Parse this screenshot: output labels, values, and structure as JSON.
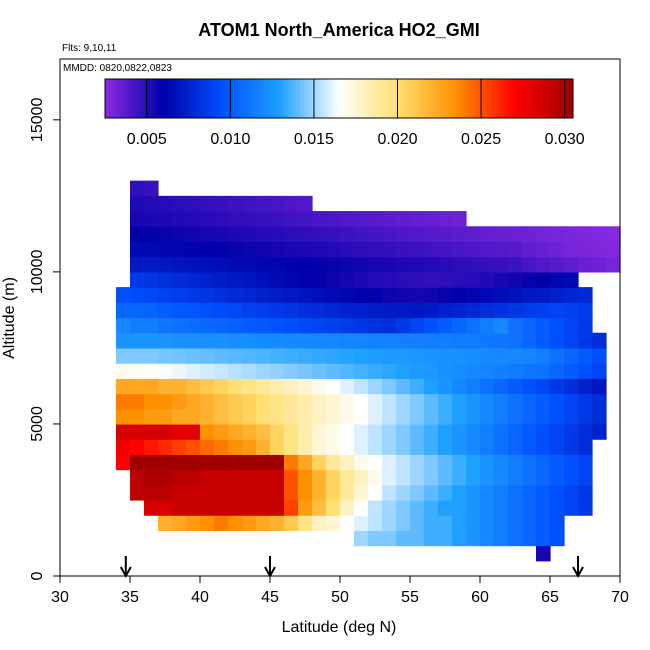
{
  "chart_data": {
    "type": "heatmap",
    "title": "ATOM1 North_America HO2_GMI",
    "annotations": [
      "Flts: 9,10,11",
      "MMDD: 0820,0822,0823"
    ],
    "xlabel": "Latitude (deg N)",
    "ylabel": "Altitude (m)",
    "xlim": [
      30,
      70
    ],
    "ylim": [
      0,
      17000
    ],
    "x_ticks": [
      "30",
      "35",
      "40",
      "45",
      "50",
      "55",
      "60",
      "65",
      "70"
    ],
    "y_ticks": [
      "0",
      "5000",
      "10000",
      "15000"
    ],
    "colorbar": {
      "range": [
        0.0025,
        0.0305
      ],
      "tick_labels": [
        "0.005",
        "0.010",
        "0.015",
        "0.020",
        "0.025",
        "0.030"
      ],
      "tick_values": [
        0.005,
        0.01,
        0.015,
        0.02,
        0.025,
        0.03
      ],
      "colors": [
        "#8a2be2",
        "#0000a8",
        "#0050ff",
        "#1ea0ff",
        "#ffffff",
        "#ffe070",
        "#ff9000",
        "#ff0000",
        "#a00000"
      ]
    },
    "flight_arrows_lat": [
      34.7,
      45,
      67
    ],
    "bin_size": {
      "lat": 1,
      "alt": 500
    },
    "rows": [
      {
        "alt": 750,
        "lat_range": [
          64,
          65
        ],
        "values": [
          0.0055
        ]
      },
      {
        "alt": 1250,
        "lat_range": [
          51,
          66
        ],
        "values": [
          0.015,
          0.0145,
          0.0145,
          0.014,
          0.014,
          0.0135,
          0.0135,
          0.013,
          0.0125,
          0.012,
          0.0115,
          0.011,
          0.0105,
          0.01,
          0.0095
        ]
      },
      {
        "alt": 1750,
        "lat_range": [
          37,
          66
        ],
        "values": [
          0.022,
          0.0225,
          0.023,
          0.0235,
          0.024,
          0.0235,
          0.023,
          0.0225,
          0.022,
          0.021,
          0.0195,
          0.018,
          0.0175,
          0.0165,
          0.016,
          0.0155,
          0.015,
          0.0145,
          0.014,
          0.0135,
          0.0135,
          0.013,
          0.0125,
          0.012,
          0.0115,
          0.011,
          0.0105,
          0.01,
          0.0095
        ]
      },
      {
        "alt": 2250,
        "lat_range": [
          36,
          68
        ],
        "values": [
          0.0285,
          0.0285,
          0.029,
          0.029,
          0.029,
          0.029,
          0.029,
          0.029,
          0.029,
          0.029,
          0.0255,
          0.023,
          0.0215,
          0.02,
          0.018,
          0.0165,
          0.0155,
          0.015,
          0.0145,
          0.014,
          0.0135,
          0.013,
          0.013,
          0.0125,
          0.012,
          0.0115,
          0.011,
          0.0105,
          0.01,
          0.0095,
          0.009,
          0.0085
        ]
      },
      {
        "alt": 2750,
        "lat_range": [
          35,
          68
        ],
        "values": [
          0.0295,
          0.0295,
          0.0295,
          0.029,
          0.029,
          0.029,
          0.029,
          0.029,
          0.029,
          0.029,
          0.029,
          0.025,
          0.0235,
          0.022,
          0.0205,
          0.019,
          0.0175,
          0.0165,
          0.0155,
          0.015,
          0.0145,
          0.014,
          0.0135,
          0.013,
          0.0125,
          0.012,
          0.0115,
          0.011,
          0.0105,
          0.01,
          0.0095,
          0.009,
          0.0085
        ]
      },
      {
        "alt": 3250,
        "lat_range": [
          35,
          68
        ],
        "values": [
          0.0295,
          0.03,
          0.03,
          0.0295,
          0.0295,
          0.029,
          0.029,
          0.029,
          0.029,
          0.029,
          0.029,
          0.025,
          0.0235,
          0.022,
          0.0205,
          0.019,
          0.018,
          0.017,
          0.016,
          0.0155,
          0.015,
          0.0145,
          0.014,
          0.0135,
          0.013,
          0.0125,
          0.012,
          0.0115,
          0.011,
          0.0105,
          0.01,
          0.0095,
          0.009
        ]
      },
      {
        "alt": 3750,
        "lat_range": [
          34,
          68
        ],
        "values": [
          0.027,
          0.0305,
          0.0305,
          0.0305,
          0.0305,
          0.0305,
          0.0305,
          0.0305,
          0.0305,
          0.0305,
          0.0305,
          0.0305,
          0.024,
          0.0225,
          0.0205,
          0.019,
          0.018,
          0.017,
          0.0165,
          0.016,
          0.0155,
          0.015,
          0.0145,
          0.014,
          0.0135,
          0.013,
          0.0125,
          0.012,
          0.0115,
          0.011,
          0.0105,
          0.01,
          0.0095,
          0.009
        ]
      },
      {
        "alt": 4250,
        "lat_range": [
          34,
          68
        ],
        "values": [
          0.0275,
          0.027,
          0.0265,
          0.026,
          0.0255,
          0.025,
          0.0245,
          0.024,
          0.0235,
          0.023,
          0.022,
          0.0205,
          0.0195,
          0.0185,
          0.0175,
          0.017,
          0.0165,
          0.016,
          0.0155,
          0.015,
          0.0145,
          0.014,
          0.0135,
          0.013,
          0.0125,
          0.012,
          0.0115,
          0.011,
          0.0105,
          0.01,
          0.0095,
          0.009,
          0.0085,
          0.008
        ]
      },
      {
        "alt": 4750,
        "lat_range": [
          34,
          69
        ],
        "values": [
          0.0285,
          0.0285,
          0.0285,
          0.0285,
          0.028,
          0.028,
          0.0235,
          0.023,
          0.0225,
          0.022,
          0.0215,
          0.0205,
          0.0195,
          0.0185,
          0.0175,
          0.017,
          0.0165,
          0.016,
          0.0155,
          0.015,
          0.0145,
          0.014,
          0.0135,
          0.013,
          0.0125,
          0.012,
          0.0115,
          0.011,
          0.0105,
          0.01,
          0.0095,
          0.009,
          0.0085,
          0.008,
          0.0075
        ]
      },
      {
        "alt": 5250,
        "lat_range": [
          34,
          69
        ],
        "values": [
          0.0235,
          0.0235,
          0.023,
          0.023,
          0.0225,
          0.0225,
          0.022,
          0.0215,
          0.021,
          0.0205,
          0.02,
          0.0195,
          0.019,
          0.0185,
          0.018,
          0.0175,
          0.017,
          0.0165,
          0.016,
          0.0155,
          0.015,
          0.0145,
          0.014,
          0.0135,
          0.013,
          0.0125,
          0.012,
          0.0115,
          0.011,
          0.0105,
          0.01,
          0.0095,
          0.009,
          0.0085,
          0.008
        ]
      },
      {
        "alt": 5750,
        "lat_range": [
          34,
          69
        ],
        "values": [
          0.024,
          0.024,
          0.0235,
          0.0235,
          0.023,
          0.0225,
          0.022,
          0.0215,
          0.021,
          0.0205,
          0.02,
          0.0195,
          0.019,
          0.0185,
          0.018,
          0.0175,
          0.017,
          0.0165,
          0.016,
          0.0155,
          0.015,
          0.0145,
          0.014,
          0.0135,
          0.013,
          0.0125,
          0.012,
          0.0115,
          0.011,
          0.0105,
          0.01,
          0.0095,
          0.009,
          0.0085,
          0.008
        ]
      },
      {
        "alt": 6250,
        "lat_range": [
          34,
          69
        ],
        "values": [
          0.0225,
          0.0225,
          0.0225,
          0.022,
          0.022,
          0.0215,
          0.021,
          0.0205,
          0.02,
          0.0195,
          0.019,
          0.0185,
          0.018,
          0.0175,
          0.017,
          0.0165,
          0.016,
          0.0155,
          0.015,
          0.0145,
          0.014,
          0.0135,
          0.013,
          0.0125,
          0.012,
          0.0115,
          0.011,
          0.0105,
          0.01,
          0.0095,
          0.009,
          0.0085,
          0.008,
          0.0075,
          0.007
        ]
      },
      {
        "alt": 6750,
        "lat_range": [
          34,
          69
        ],
        "values": [
          0.017,
          0.0168,
          0.0166,
          0.0164,
          0.0162,
          0.016,
          0.0158,
          0.0156,
          0.0154,
          0.0152,
          0.015,
          0.0148,
          0.0146,
          0.0144,
          0.0142,
          0.014,
          0.0138,
          0.0136,
          0.0134,
          0.0132,
          0.013,
          0.0128,
          0.0126,
          0.0124,
          0.0122,
          0.012,
          0.0118,
          0.0116,
          0.0114,
          0.0112,
          0.011,
          0.0105,
          0.01,
          0.0095,
          0.009
        ]
      },
      {
        "alt": 7250,
        "lat_range": [
          34,
          69
        ],
        "values": [
          0.0145,
          0.0145,
          0.0145,
          0.0144,
          0.0143,
          0.0142,
          0.0141,
          0.014,
          0.0139,
          0.0138,
          0.0137,
          0.0136,
          0.0135,
          0.0134,
          0.0133,
          0.0132,
          0.0131,
          0.013,
          0.0129,
          0.0128,
          0.0127,
          0.0126,
          0.0125,
          0.0124,
          0.0123,
          0.0122,
          0.0121,
          0.012,
          0.0119,
          0.0118,
          0.0115,
          0.011,
          0.0105,
          0.01,
          0.0095
        ]
      },
      {
        "alt": 7750,
        "lat_range": [
          34,
          69
        ],
        "values": [
          0.0125,
          0.0125,
          0.0125,
          0.0125,
          0.0124,
          0.0124,
          0.0123,
          0.0123,
          0.0122,
          0.0122,
          0.0121,
          0.0121,
          0.012,
          0.012,
          0.0119,
          0.0119,
          0.0118,
          0.0118,
          0.0117,
          0.0117,
          0.0116,
          0.0116,
          0.0115,
          0.0115,
          0.0114,
          0.0114,
          0.0113,
          0.0112,
          0.011,
          0.0105,
          0.01,
          0.0095,
          0.009,
          0.0085,
          0.008
        ]
      },
      {
        "alt": 8250,
        "lat_range": [
          34,
          68
        ],
        "values": [
          0.012,
          0.0115,
          0.0115,
          0.0112,
          0.011,
          0.0108,
          0.0106,
          0.0104,
          0.0102,
          0.01,
          0.0098,
          0.0096,
          0.0094,
          0.0092,
          0.009,
          0.0088,
          0.0086,
          0.0084,
          0.0082,
          0.008,
          0.0085,
          0.009,
          0.0095,
          0.01,
          0.0105,
          0.011,
          0.0115,
          0.012,
          0.011,
          0.0105,
          0.01,
          0.0095,
          0.009,
          0.0085
        ]
      },
      {
        "alt": 8750,
        "lat_range": [
          34,
          68
        ],
        "values": [
          0.0105,
          0.0105,
          0.0103,
          0.0101,
          0.0099,
          0.0097,
          0.0095,
          0.0093,
          0.0091,
          0.0089,
          0.0087,
          0.0085,
          0.0083,
          0.0081,
          0.0079,
          0.0077,
          0.0075,
          0.0074,
          0.0073,
          0.0072,
          0.0071,
          0.007,
          0.0072,
          0.0074,
          0.0076,
          0.0078,
          0.008,
          0.0082,
          0.0084,
          0.0086,
          0.0088,
          0.009,
          0.0088,
          0.0086
        ]
      },
      {
        "alt": 9250,
        "lat_range": [
          34,
          68
        ],
        "values": [
          0.0095,
          0.0093,
          0.0091,
          0.0089,
          0.0087,
          0.0085,
          0.0083,
          0.0081,
          0.0079,
          0.0077,
          0.0075,
          0.0073,
          0.0071,
          0.0069,
          0.0067,
          0.0065,
          0.0063,
          0.0061,
          0.0059,
          0.0057,
          0.0056,
          0.0055,
          0.0056,
          0.0058,
          0.006,
          0.0062,
          0.0064,
          0.0066,
          0.0068,
          0.007,
          0.0072,
          0.0074,
          0.0076,
          0.0078
        ]
      },
      {
        "alt": 9750,
        "lat_range": [
          35,
          67
        ],
        "values": [
          0.0085,
          0.0083,
          0.0081,
          0.0079,
          0.0077,
          0.0075,
          0.0073,
          0.0071,
          0.0069,
          0.0067,
          0.0065,
          0.0063,
          0.0061,
          0.0059,
          0.0057,
          0.0055,
          0.0053,
          0.0051,
          0.005,
          0.0049,
          0.0048,
          0.0047,
          0.0048,
          0.0049,
          0.005,
          0.0052,
          0.0054,
          0.0056,
          0.0058,
          0.006,
          0.0062,
          0.0064
        ]
      },
      {
        "alt": 10250,
        "lat_range": [
          35,
          70
        ],
        "values": [
          0.0072,
          0.0071,
          0.007,
          0.0069,
          0.0068,
          0.0067,
          0.0066,
          0.0065,
          0.0064,
          0.0063,
          0.0062,
          0.0061,
          0.006,
          0.0059,
          0.0058,
          0.0057,
          0.0056,
          0.0055,
          0.0054,
          0.0053,
          0.0052,
          0.0051,
          0.005,
          0.0049,
          0.0048,
          0.0047,
          0.0046,
          0.0045,
          0.0042,
          0.004,
          0.0038,
          0.0036,
          0.0034,
          0.0032,
          0.003
        ]
      },
      {
        "alt": 10750,
        "lat_range": [
          35,
          70
        ],
        "values": [
          0.0065,
          0.0064,
          0.0063,
          0.0062,
          0.0061,
          0.006,
          0.0059,
          0.0058,
          0.0057,
          0.0056,
          0.0055,
          0.0054,
          0.0053,
          0.0052,
          0.0051,
          0.005,
          0.0049,
          0.0048,
          0.0047,
          0.0046,
          0.0045,
          0.0044,
          0.0043,
          0.0042,
          0.0041,
          0.004,
          0.0039,
          0.0038,
          0.0036,
          0.0034,
          0.0032,
          0.003,
          0.0029,
          0.0028,
          0.0027
        ]
      },
      {
        "alt": 11250,
        "lat_range": [
          35,
          70
        ],
        "values": [
          0.006,
          0.0059,
          0.0058,
          0.0057,
          0.0056,
          0.0055,
          0.0054,
          0.0053,
          0.0052,
          0.0051,
          0.005,
          0.0049,
          0.0048,
          0.0047,
          0.0046,
          0.0045,
          0.0044,
          0.0043,
          0.0042,
          0.0041,
          0.004,
          0.0039,
          0.0038,
          0.0037,
          0.0036,
          0.0035,
          0.0034,
          0.0033,
          0.0032,
          0.0031,
          0.003,
          0.0029,
          0.0028,
          0.0027,
          0.0026
        ]
      },
      {
        "alt": 11750,
        "lat_range": [
          35,
          59
        ],
        "values": [
          0.0055,
          0.0054,
          0.0053,
          0.0052,
          0.0051,
          0.005,
          0.0049,
          0.0048,
          0.0047,
          0.0046,
          0.0045,
          0.0044,
          0.0043,
          0.0042,
          0.0041,
          0.004,
          0.0039,
          0.0038,
          0.0037,
          0.0036,
          0.0035,
          0.0034,
          0.0033,
          0.0032
        ]
      },
      {
        "alt": 12250,
        "lat_range": [
          35,
          48
        ],
        "values": [
          0.0052,
          0.0051,
          0.005,
          0.0049,
          0.0048,
          0.0047,
          0.0046,
          0.0045,
          0.0044,
          0.0043,
          0.0042,
          0.0041,
          0.004
        ]
      },
      {
        "alt": 12750,
        "lat_range": [
          35,
          37
        ],
        "values": [
          0.0048,
          0.0046
        ]
      }
    ]
  }
}
